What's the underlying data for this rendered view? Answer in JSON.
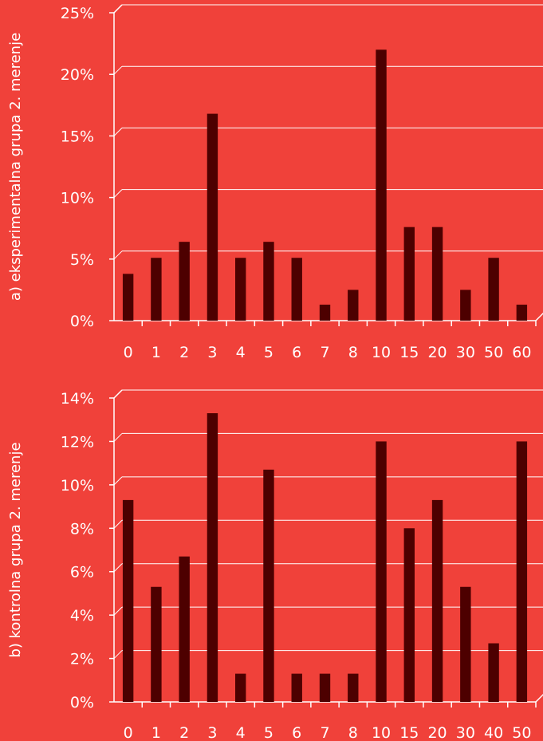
{
  "chart_data": [
    {
      "type": "bar",
      "ylabel": "a) eksperimentalna grupa 2. merenje",
      "categories": [
        "0",
        "1",
        "2",
        "3",
        "4",
        "5",
        "6",
        "7",
        "8",
        "10",
        "15",
        "20",
        "30",
        "50",
        "60"
      ],
      "values": [
        3.8,
        5.1,
        6.4,
        16.8,
        5.1,
        6.4,
        5.1,
        1.3,
        2.5,
        22.0,
        7.6,
        7.6,
        2.5,
        5.1,
        1.3
      ],
      "ylim": [
        0,
        25
      ],
      "yticks": [
        0,
        5,
        10,
        15,
        20,
        25
      ],
      "ytick_labels": [
        "0%",
        "5%",
        "10%",
        "15%",
        "20%",
        "25%"
      ],
      "grid": true,
      "bar_color": "#4d0000"
    },
    {
      "type": "bar",
      "ylabel": "b) kontrolna grupa 2. merenje",
      "categories": [
        "0",
        "1",
        "2",
        "3",
        "4",
        "5",
        "6",
        "7",
        "8",
        "10",
        "15",
        "20",
        "30",
        "40",
        "50"
      ],
      "values": [
        9.3,
        5.3,
        6.7,
        13.3,
        1.3,
        10.7,
        1.3,
        1.3,
        1.3,
        12.0,
        8.0,
        9.3,
        5.3,
        2.7,
        12.0
      ],
      "ylim": [
        0,
        14
      ],
      "yticks": [
        0,
        2,
        4,
        6,
        8,
        10,
        12,
        14
      ],
      "ytick_labels": [
        "0%",
        "2%",
        "4%",
        "6%",
        "8%",
        "10%",
        "12%",
        "14%"
      ],
      "grid": true,
      "bar_color": "#4d0000"
    }
  ]
}
